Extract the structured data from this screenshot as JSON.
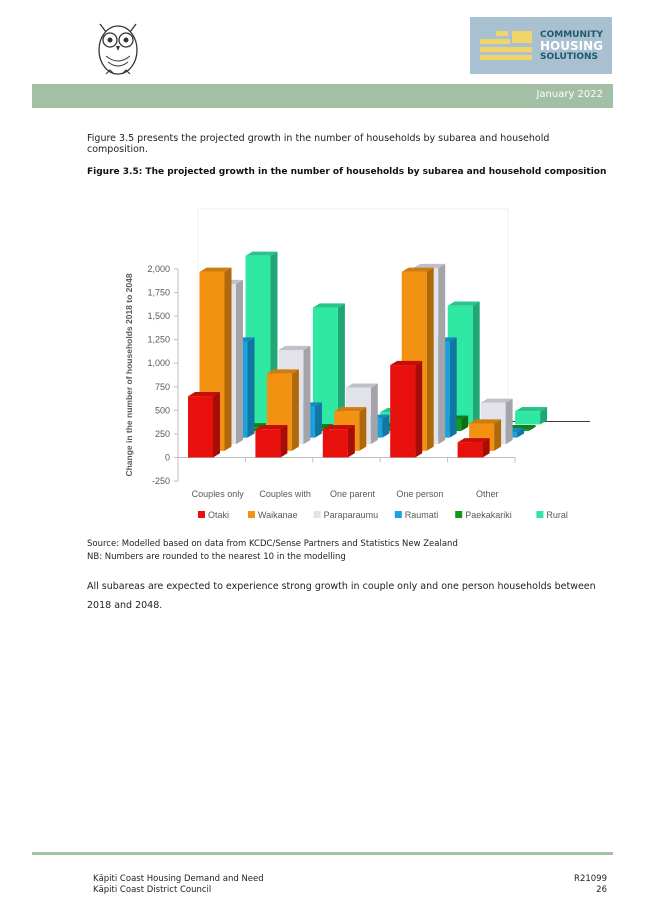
{
  "header": {
    "brand_lines": [
      "COMMUNITY",
      "HOUSING",
      "SOLUTIONS"
    ],
    "date": "January 2022",
    "band_color": "#a3bfa4"
  },
  "intro": "Figure 3.5 presents the projected growth in the number of households by subarea and household composition.",
  "caption": "Figure 3.5: The projected growth in the number of households by subarea and household composition",
  "chart_data": {
    "type": "bar",
    "subtype": "3d-clustered-column",
    "categories": [
      "Couples only",
      "Couples with",
      "One parent",
      "One person",
      "Other"
    ],
    "series": [
      {
        "name": "Otaki",
        "color": "#e8100c",
        "values": [
          650,
          300,
          300,
          980,
          160
        ]
      },
      {
        "name": "Waikanae",
        "color": "#f39212",
        "values": [
          1900,
          820,
          420,
          1900,
          290
        ]
      },
      {
        "name": "Paraparaumu",
        "color": "#e2e2ea",
        "values": [
          1700,
          1000,
          600,
          1870,
          440
        ]
      },
      {
        "name": "Raumati",
        "color": "#1aa2e0",
        "values": [
          1020,
          330,
          200,
          1020,
          60
        ]
      },
      {
        "name": "Paekakariki",
        "color": "#0f9a1b",
        "values": [
          40,
          30,
          40,
          120,
          20
        ]
      },
      {
        "name": "Rural",
        "color": "#2ee8a4",
        "values": [
          1790,
          1240,
          130,
          1260,
          140
        ]
      }
    ],
    "title": "",
    "xlabel": "",
    "ylabel": "Change in the number of households 2018 to 2048",
    "yticks": [
      "2,000",
      "1,750",
      "1,500",
      "1,250",
      "1,000",
      "750",
      "500",
      "250",
      "0",
      "-250"
    ],
    "ylim": [
      -250,
      2000
    ],
    "grid": false,
    "legend_position": "bottom"
  },
  "notes": [
    "Source:  Modelled based on data from KCDC/Sense Partners and Statistics New Zealand",
    "NB:  Numbers are rounded to the nearest 10 in the modelling"
  ],
  "paragraph": "All subareas are expected to experience strong growth in couple only and one person households between 2018 and 2048.",
  "footer": {
    "left_line1": "Kāpiti Coast Housing Demand and Need",
    "left_line2": "Kāpiti Coast District Council",
    "right_line1": "R21099",
    "right_line2": "26"
  }
}
